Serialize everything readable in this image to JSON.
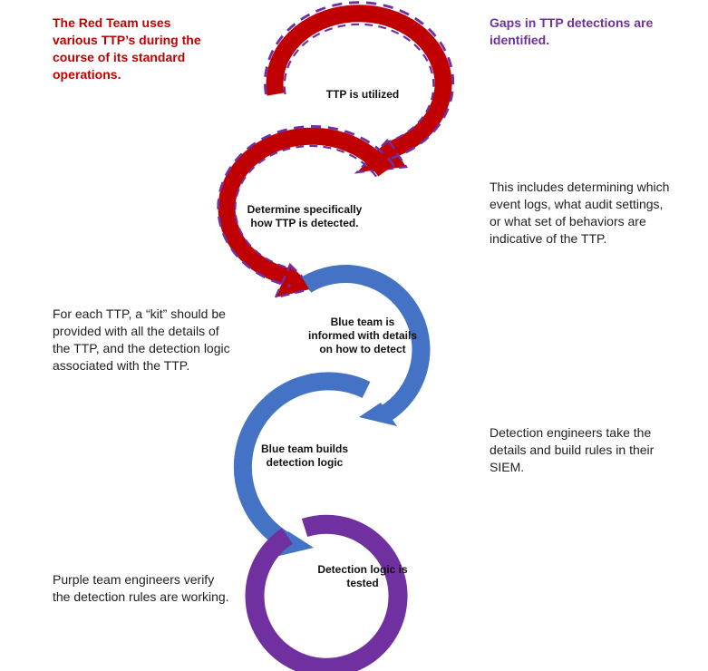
{
  "colors": {
    "red": "#c00000",
    "red_dash": "#7030a0",
    "blue": "#4472c4",
    "purple": "#7030a0",
    "text_red": "#c00000",
    "text_purple": "#7030a0",
    "text_body": "#1f1f1f"
  },
  "notes": {
    "red_team": "The Red Team uses various TTP’s during the course of its standard operations.",
    "gaps": "Gaps in TTP detections are identified.",
    "determining": "This includes determining which event logs, what audit settings, or what set of behaviors are indicative of the TTP.",
    "kit": "For each TTP, a “kit” should be provided with all the details of the TTP, and the detection logic associated with the TTP.",
    "engineers": "Detection engineers take the details and build rules in their SIEM.",
    "purple_verify": "Purple team engineers verify the detection rules are working."
  },
  "steps": [
    {
      "label": "TTP is utilized",
      "color": "red",
      "dashed": true
    },
    {
      "label": "Determine specifically how TTP is detected.",
      "color": "red",
      "dashed": true
    },
    {
      "label": "Blue team is informed with details on how to detect",
      "color": "blue",
      "dashed": false
    },
    {
      "label": "Blue team builds detection logic",
      "color": "blue",
      "dashed": false
    },
    {
      "label": "Detection logic is tested",
      "color": "purple",
      "dashed": false
    }
  ]
}
